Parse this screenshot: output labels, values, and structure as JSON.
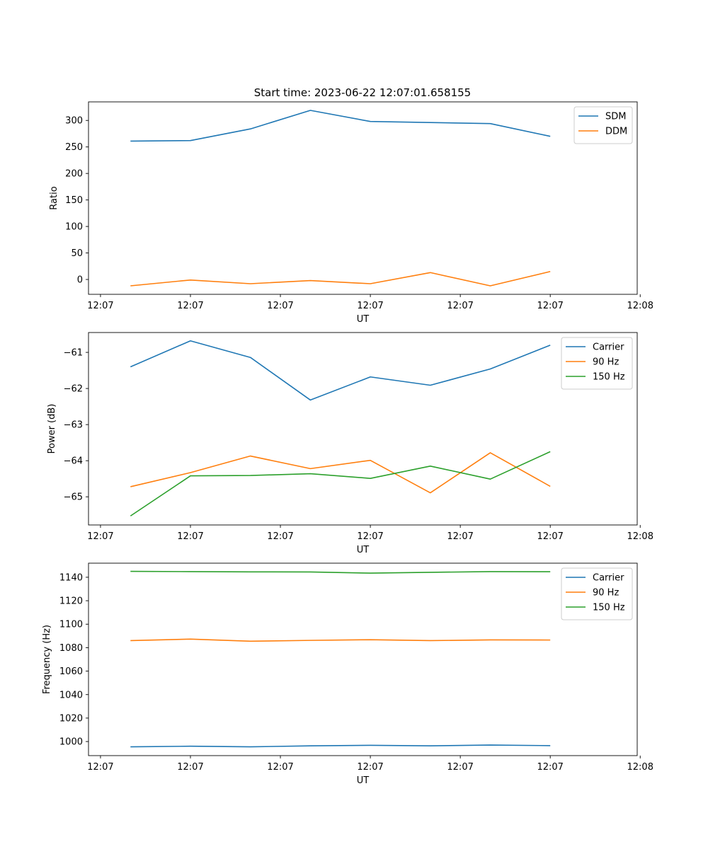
{
  "figure_title": "Start time: 2023-06-22 12:07:01.658155",
  "colors": {
    "blue": "#1f77b4",
    "orange": "#ff7f0e",
    "green": "#2ca02c"
  },
  "chart_data": [
    {
      "type": "line",
      "title": "Start time: 2023-06-22 12:07:01.658155",
      "xlabel": "UT",
      "ylabel": "Ratio",
      "x": [
        1,
        2,
        3,
        4,
        5,
        6,
        7,
        8
      ],
      "xlim": [
        0.3,
        9.45
      ],
      "xticks": [
        0.5,
        2,
        3.5,
        5,
        6.5,
        8,
        9.5
      ],
      "xticklabels": [
        "12:07",
        "12:07",
        "12:07",
        "12:07",
        "12:07",
        "12:07",
        "12:08"
      ],
      "ylim": [
        -28,
        335
      ],
      "yticks": [
        0,
        50,
        100,
        150,
        200,
        250,
        300
      ],
      "legend": "upper right",
      "grid": false,
      "series": [
        {
          "name": "SDM",
          "color": "#1f77b4",
          "values": [
            261,
            262,
            284,
            319,
            298,
            296,
            294,
            270
          ]
        },
        {
          "name": "DDM",
          "color": "#ff7f0e",
          "values": [
            -12,
            -1,
            -8,
            -2,
            -8,
            13,
            -12,
            15
          ]
        }
      ]
    },
    {
      "type": "line",
      "xlabel": "UT",
      "ylabel": "Power (dB)",
      "x": [
        1,
        2,
        3,
        4,
        5,
        6,
        7,
        8
      ],
      "xlim": [
        0.3,
        9.45
      ],
      "xticks": [
        0.5,
        2,
        3.5,
        5,
        6.5,
        8,
        9.5
      ],
      "xticklabels": [
        "12:07",
        "12:07",
        "12:07",
        "12:07",
        "12:07",
        "12:07",
        "12:08"
      ],
      "ylim": [
        -65.78,
        -60.45
      ],
      "yticks": [
        -65,
        -64,
        -63,
        -62,
        -61
      ],
      "legend": "upper right",
      "grid": false,
      "series": [
        {
          "name": "Carrier",
          "color": "#1f77b4",
          "values": [
            -61.4,
            -60.68,
            -61.14,
            -62.32,
            -61.68,
            -61.91,
            -61.46,
            -60.8
          ]
        },
        {
          "name": "90 Hz",
          "color": "#ff7f0e",
          "values": [
            -64.72,
            -64.33,
            -63.87,
            -64.22,
            -63.99,
            -64.89,
            -63.78,
            -64.71
          ]
        },
        {
          "name": "150 Hz",
          "color": "#2ca02c",
          "values": [
            -65.53,
            -64.42,
            -64.41,
            -64.36,
            -64.49,
            -64.15,
            -64.51,
            -63.75
          ]
        }
      ]
    },
    {
      "type": "line",
      "xlabel": "UT",
      "ylabel": "Frequency (Hz)",
      "x": [
        1,
        2,
        3,
        4,
        5,
        6,
        7,
        8
      ],
      "xlim": [
        0.3,
        9.45
      ],
      "xticks": [
        0.5,
        2,
        3.5,
        5,
        6.5,
        8,
        9.5
      ],
      "xticklabels": [
        "12:07",
        "12:07",
        "12:07",
        "12:07",
        "12:07",
        "12:07",
        "12:08"
      ],
      "ylim": [
        988,
        1152
      ],
      "yticks": [
        1000,
        1020,
        1040,
        1060,
        1080,
        1100,
        1120,
        1140
      ],
      "legend": "upper right",
      "grid": false,
      "series": [
        {
          "name": "Carrier",
          "color": "#1f77b4",
          "values": [
            995.5,
            996.0,
            995.5,
            996.3,
            996.8,
            996.3,
            997.0,
            996.5
          ]
        },
        {
          "name": "90 Hz",
          "color": "#ff7f0e",
          "values": [
            1086.0,
            1087.3,
            1085.5,
            1086.2,
            1086.8,
            1086.0,
            1086.6,
            1086.5
          ]
        },
        {
          "name": "150 Hz",
          "color": "#2ca02c",
          "values": [
            1145.0,
            1144.8,
            1144.6,
            1144.5,
            1143.5,
            1144.2,
            1144.8,
            1144.7
          ]
        }
      ]
    }
  ]
}
